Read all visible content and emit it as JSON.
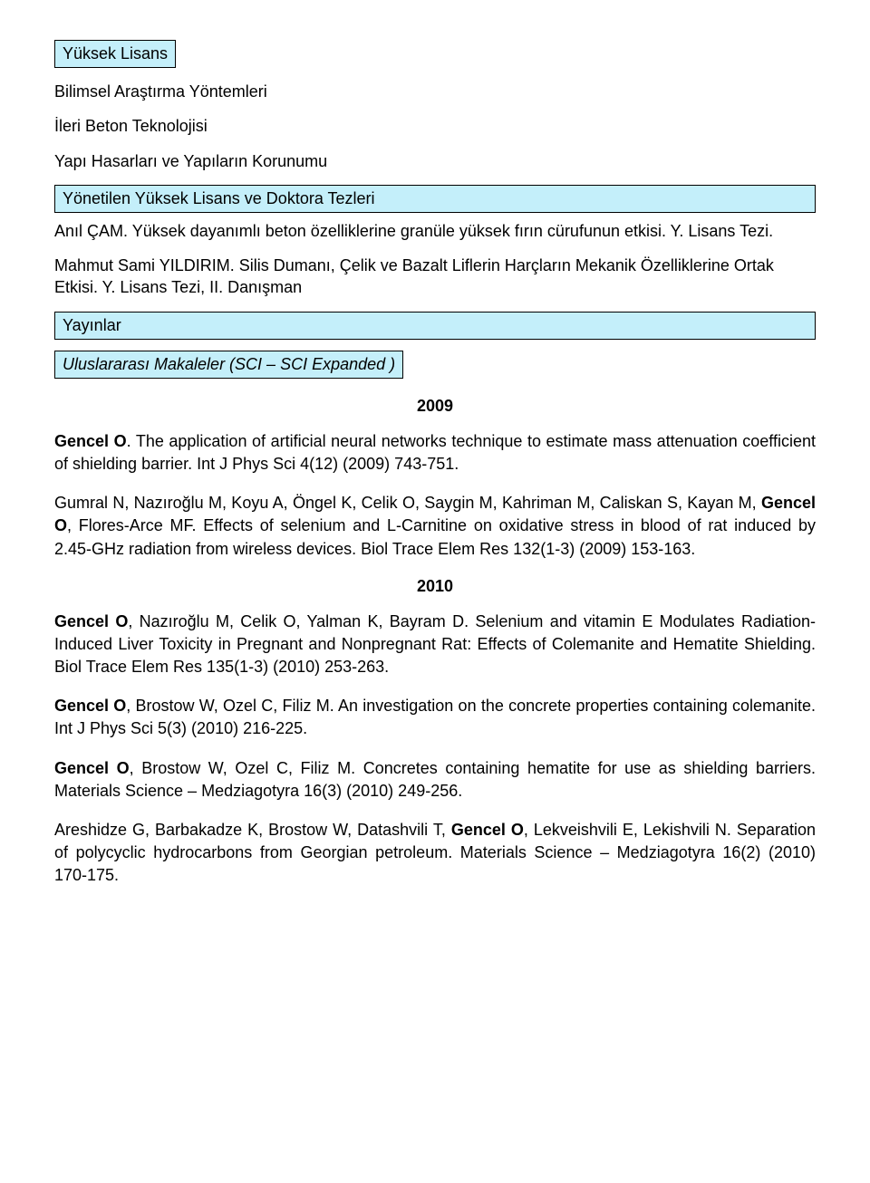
{
  "box_yuksek_lisans": "Yüksek Lisans",
  "line_bilimsel": "Bilimsel Araştırma Yöntemleri",
  "line_ileri": "İleri Beton Teknolojisi",
  "line_yapi": "Yapı Hasarları ve Yapıların Korunumu",
  "box_yonetilen": "Yönetilen Yüksek Lisans ve Doktora Tezleri",
  "thesis1": "Anıl ÇAM. Yüksek dayanımlı beton özelliklerine granüle yüksek fırın cürufunun etkisi. Y. Lisans Tezi.",
  "thesis2": "Mahmut Sami YILDIRIM. Silis Dumanı, Çelik ve Bazalt Liflerin Harçların Mekanik Özelliklerine Ortak Etkisi. Y. Lisans Tezi, II. Danışman",
  "box_yayinlar": "Yayınlar",
  "box_uluslararasi": "Uluslararası Makaleler (SCI – SCI Expanded )",
  "year_2009": "2009",
  "pub1_bold": "Gencel O",
  "pub1_rest": ". The application of artificial neural networks technique to estimate mass attenuation coefficient of shielding barrier. Int J Phys Sci 4(12) (2009) 743-751.",
  "pub2_a": "Gumral N, Nazıroğlu M, Koyu A, Öngel K, Celik O, Saygin M, Kahriman M, Caliskan S, Kayan M, ",
  "pub2_bold": "Gencel O",
  "pub2_b": ", Flores-Arce MF. Effects of selenium and L-Carnitine on oxidative stress in blood of rat induced by 2.45-GHz radiation from wireless devices. Biol Trace Elem Res 132(1-3) (2009) 153-163.",
  "year_2010": "2010",
  "pub3_bold": "Gencel O",
  "pub3_rest": ", Nazıroğlu M, Celik O, Yalman K, Bayram D. Selenium and vitamin E Modulates Radiation- Induced Liver Toxicity in Pregnant and Nonpregnant Rat: Effects of Colemanite and Hematite Shielding. Biol Trace Elem Res 135(1-3) (2010) 253-263.",
  "pub4_bold": "Gencel O",
  "pub4_rest": ", Brostow W, Ozel C, Filiz M. An investigation on the concrete properties containing colemanite. Int J Phys Sci 5(3) (2010) 216-225.",
  "pub5_bold": "Gencel O",
  "pub5_rest": ", Brostow W, Ozel C, Filiz M. Concretes containing hematite for use as shielding barriers. Materials Science – Medziagotyra 16(3) (2010) 249-256.",
  "pub6_a": "Areshidze G, Barbakadze K, Brostow W, Datashvili T, ",
  "pub6_bold": "Gencel O",
  "pub6_b": ", Lekveishvili E, Lekishvili N. Separation of polycyclic hydrocarbons from Georgian petroleum. Materials Science – Medziagotyra 16(2) (2010) 170-175."
}
